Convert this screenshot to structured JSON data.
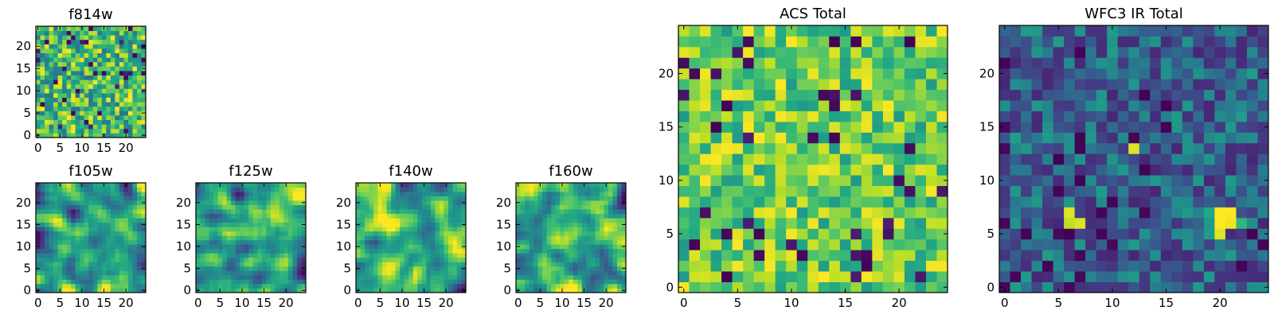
{
  "chart_data": [
    {
      "type": "heatmap",
      "title": "f814w",
      "grid_size": 25,
      "seed": 11,
      "style": "noise",
      "xticks": [
        0,
        5,
        10,
        15,
        20
      ],
      "yticks": [
        0,
        5,
        10,
        15,
        20
      ],
      "xlim": [
        0,
        25
      ],
      "ylim": [
        0,
        25
      ],
      "colormap": "viridis",
      "value_range": [
        0,
        1
      ]
    },
    {
      "type": "heatmap",
      "title": "f105w",
      "grid_size": 25,
      "seed": 23,
      "style": "smooth",
      "xticks": [
        0,
        5,
        10,
        15,
        20
      ],
      "yticks": [
        0,
        5,
        10,
        15,
        20
      ],
      "xlim": [
        0,
        25
      ],
      "ylim": [
        0,
        25
      ],
      "colormap": "viridis",
      "value_range": [
        0,
        1
      ]
    },
    {
      "type": "heatmap",
      "title": "f125w",
      "grid_size": 25,
      "seed": 37,
      "style": "smooth",
      "xticks": [
        0,
        5,
        10,
        15,
        20
      ],
      "yticks": [
        0,
        5,
        10,
        15,
        20
      ],
      "xlim": [
        0,
        25
      ],
      "ylim": [
        0,
        25
      ],
      "colormap": "viridis",
      "value_range": [
        0,
        1
      ]
    },
    {
      "type": "heatmap",
      "title": "f140w",
      "grid_size": 25,
      "seed": 41,
      "style": "smooth",
      "xticks": [
        0,
        5,
        10,
        15,
        20
      ],
      "yticks": [
        0,
        5,
        10,
        15,
        20
      ],
      "xlim": [
        0,
        25
      ],
      "ylim": [
        0,
        25
      ],
      "colormap": "viridis",
      "value_range": [
        0,
        1
      ]
    },
    {
      "type": "heatmap",
      "title": "f160w",
      "grid_size": 25,
      "seed": 53,
      "style": "smooth",
      "xticks": [
        0,
        5,
        10,
        15,
        20
      ],
      "yticks": [
        0,
        5,
        10,
        15,
        20
      ],
      "xlim": [
        0,
        25
      ],
      "ylim": [
        0,
        25
      ],
      "colormap": "viridis",
      "value_range": [
        0,
        1
      ]
    },
    {
      "type": "heatmap",
      "title": "ACS Total",
      "grid_size": 25,
      "seed": 67,
      "style": "bright",
      "xticks": [
        0,
        5,
        10,
        15,
        20
      ],
      "yticks": [
        0,
        5,
        10,
        15,
        20
      ],
      "xlim": [
        0,
        25
      ],
      "ylim": [
        0,
        25
      ],
      "colormap": "viridis",
      "value_range": [
        0,
        1
      ]
    },
    {
      "type": "heatmap",
      "title": "WFC3 IR Total",
      "grid_size": 25,
      "seed": 79,
      "style": "dark",
      "xticks": [
        0,
        5,
        10,
        15,
        20
      ],
      "yticks": [
        0,
        5,
        10,
        15,
        20
      ],
      "xlim": [
        0,
        25
      ],
      "ylim": [
        0,
        25
      ],
      "colormap": "viridis",
      "value_range": [
        0,
        1
      ],
      "hotspots": [
        {
          "x": 12,
          "y": 13,
          "value": 0.95
        },
        {
          "x": 6,
          "y": 7,
          "value": 0.95
        },
        {
          "x": 6,
          "y": 6,
          "value": 0.9
        },
        {
          "x": 7,
          "y": 6,
          "value": 0.95
        },
        {
          "x": 20,
          "y": 7,
          "value": 1.0
        },
        {
          "x": 21,
          "y": 7,
          "value": 1.0
        },
        {
          "x": 20,
          "y": 6,
          "value": 1.0
        },
        {
          "x": 21,
          "y": 6,
          "value": 0.98
        },
        {
          "x": 20,
          "y": 5,
          "value": 0.95
        },
        {
          "x": 22,
          "y": 6,
          "value": 0.65
        },
        {
          "x": 19,
          "y": 7,
          "value": 0.6
        }
      ]
    }
  ],
  "colors": {
    "axis": "#000000",
    "background": "#ffffff"
  }
}
